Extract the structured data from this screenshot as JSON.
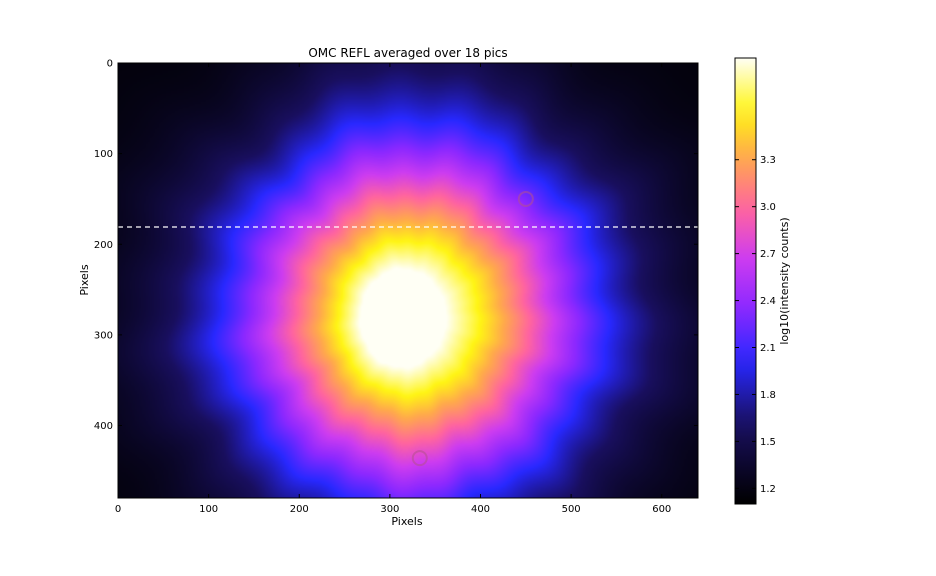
{
  "chart_data": {
    "type": "heatmap",
    "title": "OMC REFL averaged over 18 pics",
    "xlabel": "Pixels",
    "ylabel": "Pixels",
    "xlim": [
      0,
      640
    ],
    "ylim": [
      480,
      0
    ],
    "xticks": [
      "0",
      "100",
      "200",
      "300",
      "400",
      "500",
      "600"
    ],
    "xtick_values": [
      0,
      100,
      200,
      300,
      400,
      500,
      600
    ],
    "yticks": [
      "0",
      "100",
      "200",
      "300",
      "400"
    ],
    "ytick_values": [
      0,
      100,
      200,
      300,
      400
    ],
    "colormap": "gnuplot2",
    "colorbar": {
      "label": "log10(intensity counts)",
      "range": [
        1.1,
        3.95
      ],
      "ticks": [
        "1.2",
        "1.5",
        "1.8",
        "2.1",
        "2.4",
        "2.7",
        "3.0",
        "3.3"
      ],
      "tick_values": [
        1.2,
        1.5,
        1.8,
        2.1,
        2.4,
        2.7,
        3.0,
        3.3
      ]
    },
    "beam": {
      "center": [
        325,
        280
      ],
      "peak_log10": 3.95,
      "background_log10": 1.15,
      "hot_spot": [
        300,
        285
      ]
    },
    "dashed_line": {
      "orientation": "horizontal",
      "y": 181,
      "color": "#ffffff"
    },
    "features": [
      {
        "type": "ring",
        "x": 333,
        "y": 436
      },
      {
        "type": "ring",
        "x": 450,
        "y": 150
      }
    ],
    "grid": false
  }
}
